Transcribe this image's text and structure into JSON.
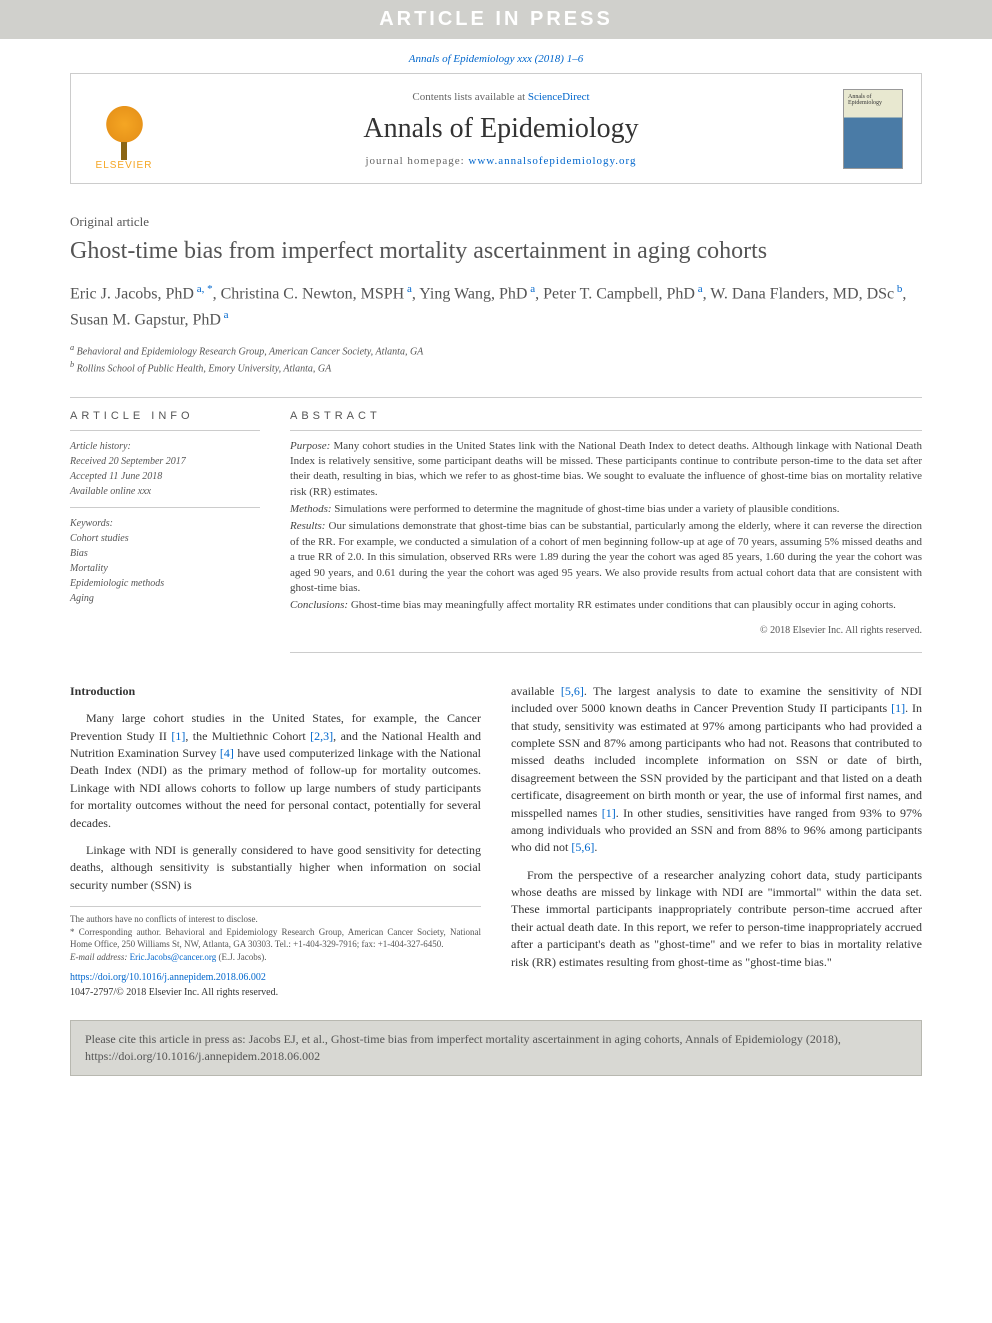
{
  "banner": "ARTICLE IN PRESS",
  "journalRef": "Annals of Epidemiology xxx (2018) 1–6",
  "header": {
    "contentsPrefix": "Contents lists available at ",
    "contentsLink": "ScienceDirect",
    "journalName": "Annals of Epidemiology",
    "homepagePrefix": "journal homepage: ",
    "homepageUrl": "www.annalsofepidemiology.org",
    "publisherName": "ELSEVIER"
  },
  "article": {
    "type": "Original article",
    "title": "Ghost-time bias from imperfect mortality ascertainment in aging cohorts",
    "authorsHtml": "Eric J. Jacobs, PhD|a, *|, Christina C. Newton, MSPH|a|, Ying Wang, PhD|a|, Peter T. Campbell, PhD|a|, W. Dana Flanders, MD, DSc|b|, Susan M. Gapstur, PhD|a|",
    "affiliations": {
      "a": "Behavioral and Epidemiology Research Group, American Cancer Society, Atlanta, GA",
      "b": "Rollins School of Public Health, Emory University, Atlanta, GA"
    }
  },
  "info": {
    "label": "ARTICLE INFO",
    "historyHeading": "Article history:",
    "received": "Received 20 September 2017",
    "accepted": "Accepted 11 June 2018",
    "online": "Available online xxx",
    "keywordsHeading": "Keywords:",
    "keywords": [
      "Cohort studies",
      "Bias",
      "Mortality",
      "Epidemiologic methods",
      "Aging"
    ]
  },
  "abstract": {
    "label": "ABSTRACT",
    "purposeLabel": "Purpose:",
    "purpose": " Many cohort studies in the United States link with the National Death Index to detect deaths. Although linkage with National Death Index is relatively sensitive, some participant deaths will be missed. These participants continue to contribute person-time to the data set after their death, resulting in bias, which we refer to as ghost-time bias. We sought to evaluate the influence of ghost-time bias on mortality relative risk (RR) estimates.",
    "methodsLabel": "Methods:",
    "methods": " Simulations were performed to determine the magnitude of ghost-time bias under a variety of plausible conditions.",
    "resultsLabel": "Results:",
    "results": " Our simulations demonstrate that ghost-time bias can be substantial, particularly among the elderly, where it can reverse the direction of the RR. For example, we conducted a simulation of a cohort of men beginning follow-up at age of 70 years, assuming 5% missed deaths and a true RR of 2.0. In this simulation, observed RRs were 1.89 during the year the cohort was aged 85 years, 1.60 during the year the cohort was aged 90 years, and 0.61 during the year the cohort was aged 95 years. We also provide results from actual cohort data that are consistent with ghost-time bias.",
    "conclusionsLabel": "Conclusions:",
    "conclusions": " Ghost-time bias may meaningfully affect mortality RR estimates under conditions that can plausibly occur in aging cohorts.",
    "copyright": "© 2018 Elsevier Inc. All rights reserved."
  },
  "body": {
    "introHeading": "Introduction",
    "col1": {
      "p1a": "Many large cohort studies in the United States, for example, the Cancer Prevention Study II ",
      "r1": "[1]",
      "p1b": ", the Multiethnic Cohort ",
      "r2": "[2,3]",
      "p1c": ", and the National Health and Nutrition Examination Survey ",
      "r3": "[4]",
      "p1d": " have used computerized linkage with the National Death Index (NDI) as the primary method of follow-up for mortality outcomes. Linkage with NDI allows cohorts to follow up large numbers of study participants for mortality outcomes without the need for personal contact, potentially for several decades.",
      "p2": "Linkage with NDI is generally considered to have good sensitivity for detecting deaths, although sensitivity is substantially higher when information on social security number (SSN) is"
    },
    "col2": {
      "p1a": "available ",
      "r4": "[5,6]",
      "p1b": ". The largest analysis to date to examine the sensitivity of NDI included over 5000 known deaths in Cancer Prevention Study II participants ",
      "r5": "[1]",
      "p1c": ". In that study, sensitivity was estimated at 97% among participants who had provided a complete SSN and 87% among participants who had not. Reasons that contributed to missed deaths included incomplete information on SSN or date of birth, disagreement between the SSN provided by the participant and that listed on a death certificate, disagreement on birth month or year, the use of informal first names, and misspelled names ",
      "r6": "[1]",
      "p1d": ". In other studies, sensitivities have ranged from 93% to 97% among individuals who provided an SSN and from 88% to 96% among participants who did not ",
      "r7": "[5,6]",
      "p1e": ".",
      "p2": "From the perspective of a researcher analyzing cohort data, study participants whose deaths are missed by linkage with NDI are \"immortal\" within the data set. These immortal participants inappropriately contribute person-time accrued after their actual death date. In this report, we refer to person-time inappropriately accrued after a participant's death as \"ghost-time\" and we refer to bias in mortality relative risk (RR) estimates resulting from ghost-time as \"ghost-time bias.\""
    }
  },
  "footer": {
    "conflict": "The authors have no conflicts of interest to disclose.",
    "corresponding": "* Corresponding author. Behavioral and Epidemiology Research Group, American Cancer Society, National Home Office, 250 Williams St, NW, Atlanta, GA 30303. Tel.: +1-404-329-7916; fax: +1-404-327-6450.",
    "emailLabel": "E-mail address: ",
    "email": "Eric.Jacobs@cancer.org",
    "emailSuffix": " (E.J. Jacobs).",
    "doi": "https://doi.org/10.1016/j.annepidem.2018.06.002",
    "issn": "1047-2797/© 2018 Elsevier Inc. All rights reserved."
  },
  "citation": "Please cite this article in press as: Jacobs EJ, et al., Ghost-time bias from imperfect mortality ascertainment in aging cohorts, Annals of Epidemiology (2018), https://doi.org/10.1016/j.annepidem.2018.06.002"
}
